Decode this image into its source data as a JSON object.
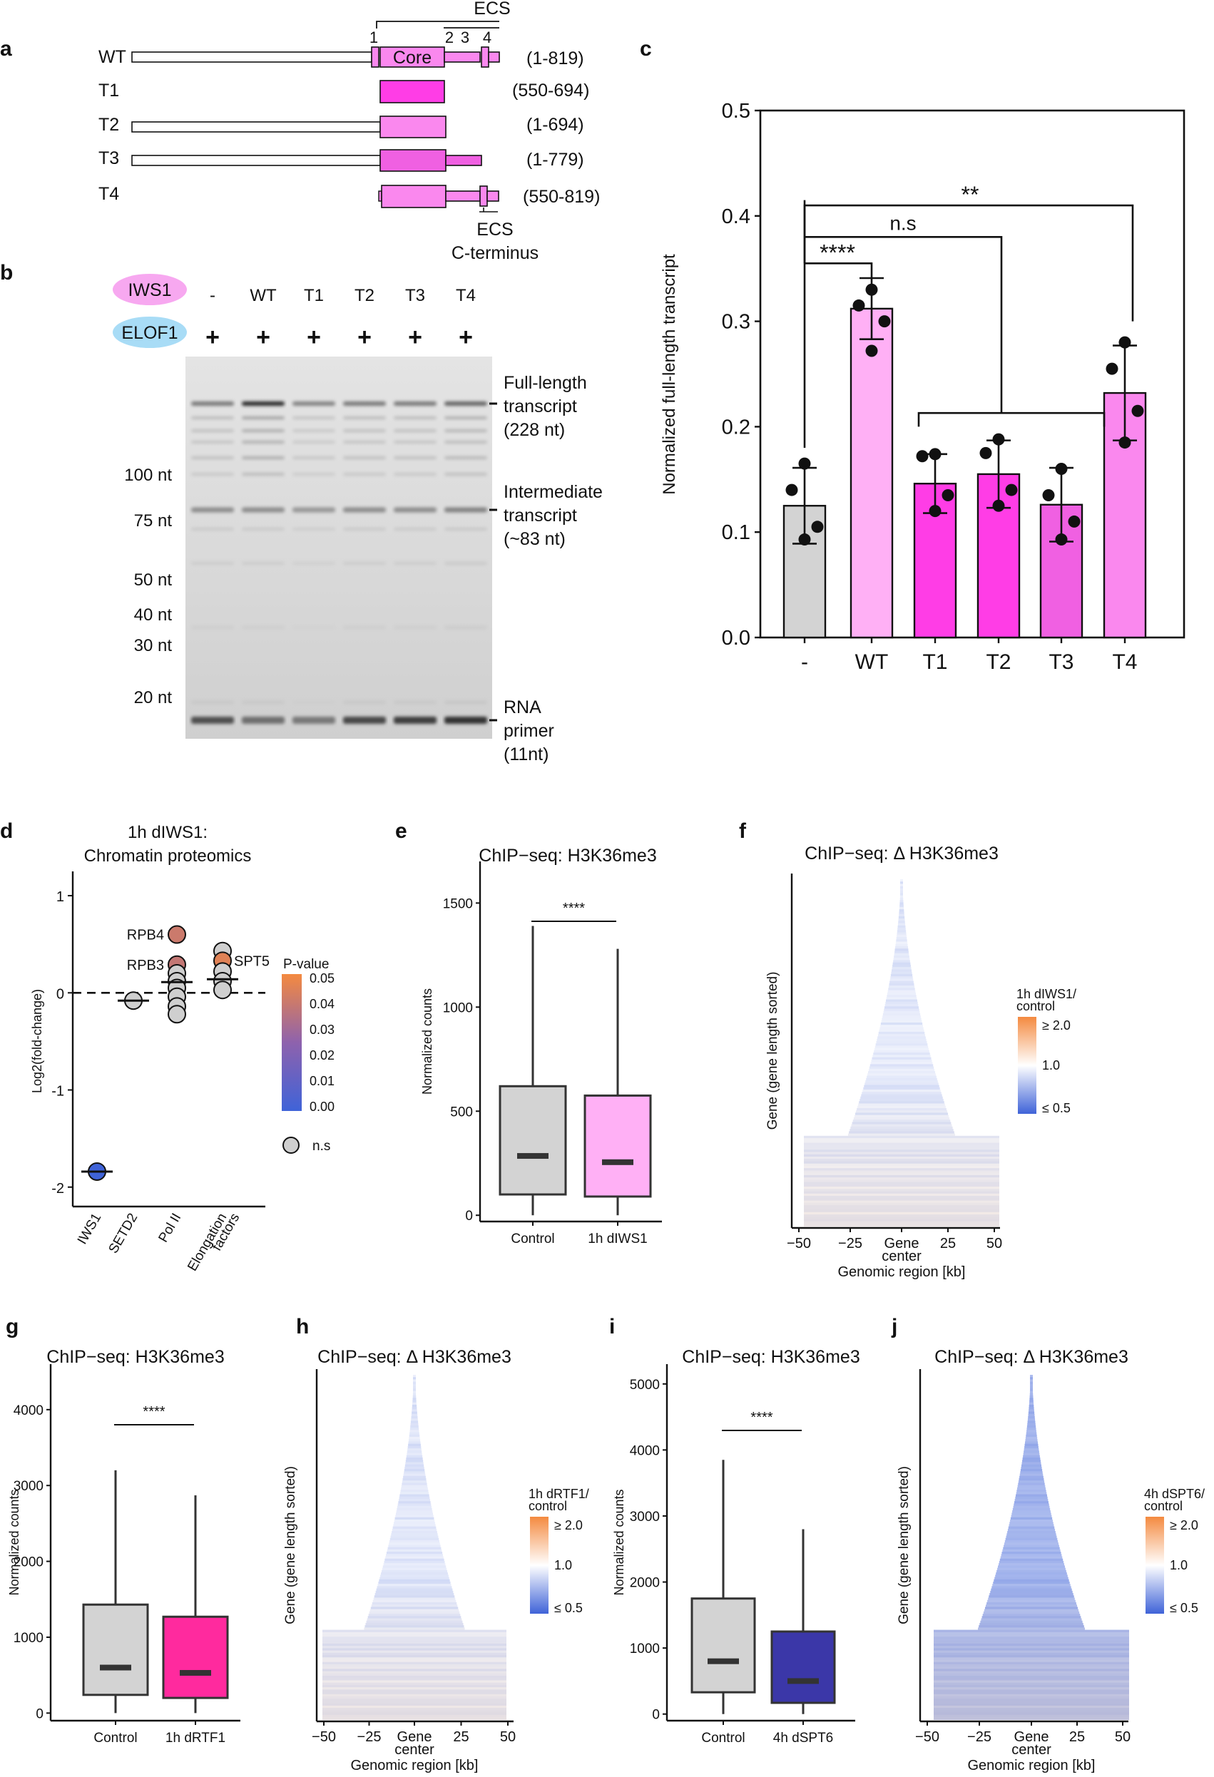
{
  "colors": {
    "grey_box": "#d3d3d3",
    "wt_pink": "#ffb0f5",
    "trunc_pink": "#ff3de6",
    "t3_pink": "#f060e2",
    "t4_pink": "#fa88ee",
    "rtf1_pink": "#ff2a9e",
    "spt6_blue": "#3b37a8",
    "iws1_oval": "#f7a8f0",
    "elof1_oval": "#a8dcf6",
    "heat_low": "#3f63d8",
    "heat_mid": "#ffffff",
    "heat_high": "#f48a40"
  },
  "panel_labels": {
    "a": "a",
    "b": "b",
    "c": "c",
    "d": "d",
    "e": "e",
    "f": "f",
    "g": "g",
    "h": "h",
    "i": "i",
    "j": "j"
  },
  "panel_a": {
    "ecs_label": "ECS",
    "ecs_numbers": [
      "1",
      "2",
      "3",
      "4"
    ],
    "core_label": "Core",
    "ecs_bottom": "ECS",
    "cterm": "C-terminus",
    "constructs": [
      {
        "name": "WT",
        "range": "(1-819)"
      },
      {
        "name": "T1",
        "range": "(550-694)"
      },
      {
        "name": "T2",
        "range": "(1-694)"
      },
      {
        "name": "T3",
        "range": "(1-779)"
      },
      {
        "name": "T4",
        "range": "(550-819)"
      }
    ]
  },
  "panel_b": {
    "iws1": "IWS1",
    "elof1": "ELOF1",
    "lanes": [
      "-",
      "WT",
      "T1",
      "T2",
      "T3",
      "T4"
    ],
    "plus": "+",
    "markers": [
      "100 nt",
      "75 nt",
      "50 nt",
      "40 nt",
      "30 nt",
      "20 nt"
    ],
    "annot_full": [
      "Full-length",
      "transcript",
      "(228 nt)"
    ],
    "annot_inter": [
      "Intermediate",
      "transcript",
      "(~83 nt)"
    ],
    "annot_primer": [
      "RNA",
      "primer",
      "(11nt)"
    ]
  },
  "panel_c": {
    "chart_data": {
      "type": "bar",
      "ylabel": "Normalized full-length transcript",
      "categories": [
        "-",
        "WT",
        "T1",
        "T2",
        "T3",
        "T4"
      ],
      "values": [
        0.125,
        0.312,
        0.146,
        0.155,
        0.126,
        0.232
      ],
      "errors": [
        0.036,
        0.029,
        0.028,
        0.032,
        0.035,
        0.045
      ],
      "points": [
        [
          0.165,
          0.14,
          0.105,
          0.093
        ],
        [
          0.33,
          0.315,
          0.3,
          0.272
        ],
        [
          0.174,
          0.172,
          0.135,
          0.12
        ],
        [
          0.188,
          0.175,
          0.14,
          0.125
        ],
        [
          0.16,
          0.135,
          0.11,
          0.093
        ],
        [
          0.28,
          0.255,
          0.215,
          0.185
        ]
      ],
      "ylim": [
        0,
        0.5
      ],
      "yticks": [
        "0.0",
        "0.1",
        "0.2",
        "0.3",
        "0.4",
        "0.5"
      ],
      "sig": [
        "****",
        "n.s",
        "**"
      ]
    }
  },
  "panel_d": {
    "title": [
      "1h dIWS1:",
      "Chromatin proteomics"
    ],
    "chart_data": {
      "type": "scatter",
      "ylabel": "Log2(fold-change)",
      "categories": [
        "IWS1",
        "SETD2",
        "Pol II",
        "Elongation factors"
      ],
      "category_lines": [
        [
          "IWS1"
        ],
        [
          "SETD2"
        ],
        [
          "Pol II"
        ],
        [
          "Elongation",
          "factors"
        ]
      ],
      "ylim": [
        -2.2,
        1.25
      ],
      "yticks": [
        "-2",
        "-1",
        "0",
        "1"
      ],
      "ytick_values": [
        -2,
        -1,
        0,
        1
      ],
      "points": [
        {
          "cat": 0,
          "y": -1.84,
          "sig": true,
          "p": 0.0
        },
        {
          "cat": 1,
          "y": -0.08,
          "sig": false
        },
        {
          "cat": 2,
          "y": 0.6,
          "sig": true,
          "p": 0.04
        },
        {
          "cat": 2,
          "y": 0.29,
          "sig": true,
          "p": 0.038
        },
        {
          "cat": 2,
          "y": 0.2,
          "sig": false
        },
        {
          "cat": 2,
          "y": 0.12,
          "sig": false
        },
        {
          "cat": 2,
          "y": 0.05,
          "sig": false
        },
        {
          "cat": 2,
          "y": -0.04,
          "sig": false
        },
        {
          "cat": 2,
          "y": -0.14,
          "sig": false
        },
        {
          "cat": 2,
          "y": -0.22,
          "sig": false
        },
        {
          "cat": 3,
          "y": 0.43,
          "sig": false
        },
        {
          "cat": 3,
          "y": 0.33,
          "sig": true,
          "p": 0.045
        },
        {
          "cat": 3,
          "y": 0.22,
          "sig": false
        },
        {
          "cat": 3,
          "y": 0.12,
          "sig": false
        },
        {
          "cat": 3,
          "y": 0.03,
          "sig": false
        }
      ],
      "medians": [
        -1.84,
        -0.08,
        0.11,
        0.14
      ],
      "labels": [
        {
          "text": "RPB4",
          "y": 0.6
        },
        {
          "text": "RPB3",
          "y": 0.29
        },
        {
          "text": "SPT5",
          "y": 0.33
        }
      ],
      "legend_title": "P-value",
      "legend_ticks": [
        "0.05",
        "0.04",
        "0.03",
        "0.02",
        "0.01",
        "0.00"
      ],
      "legend_ns": "n.s"
    }
  },
  "boxplots": {
    "e": {
      "title": "ChIP−seq: H3K36me3",
      "ylabel": "Normalized counts",
      "ylim": [
        -30,
        1700
      ],
      "yticks": [
        0,
        500,
        1000,
        1500
      ],
      "categories": [
        "Control",
        "1h dIWS1"
      ],
      "boxes": [
        {
          "min": 0,
          "q1": 100,
          "median": 285,
          "q3": 620,
          "max": 1390,
          "color_key": "grey_box"
        },
        {
          "min": 0,
          "q1": 90,
          "median": 255,
          "q3": 575,
          "max": 1280,
          "color_key": "wt_pink"
        }
      ],
      "sig": "****"
    },
    "g": {
      "title": "ChIP−seq: H3K36me3",
      "ylabel": "Normalized counts",
      "ylim": [
        -100,
        4600
      ],
      "yticks": [
        0,
        1000,
        2000,
        3000,
        4000
      ],
      "categories": [
        "Control",
        "1h dRTF1"
      ],
      "boxes": [
        {
          "min": 0,
          "q1": 240,
          "median": 600,
          "q3": 1430,
          "max": 3200,
          "color_key": "grey_box"
        },
        {
          "min": 0,
          "q1": 200,
          "median": 530,
          "q3": 1270,
          "max": 2870,
          "color_key": "rtf1_pink"
        }
      ],
      "sig": "****"
    },
    "i": {
      "title": "ChIP−seq: H3K36me3",
      "ylabel": "Normalized counts",
      "ylim": [
        -100,
        5300
      ],
      "yticks": [
        0,
        1000,
        2000,
        3000,
        4000,
        5000
      ],
      "categories": [
        "Control",
        "4h dSPT6"
      ],
      "boxes": [
        {
          "min": 0,
          "q1": 330,
          "median": 800,
          "q3": 1750,
          "max": 3850,
          "color_key": "grey_box"
        },
        {
          "min": 0,
          "q1": 170,
          "median": 500,
          "q3": 1250,
          "max": 2800,
          "color_key": "spt6_blue"
        }
      ],
      "sig": "****"
    }
  },
  "heatmaps": {
    "f": {
      "title": "ChIP−seq: Δ H3K36me3",
      "ylabel": "Gene (gene length sorted)",
      "xticks": [
        "−50",
        "−25",
        "Gene",
        "25",
        "50"
      ],
      "xsub": "center",
      "xlabel": "Genomic region [kb]",
      "legend_title": [
        "1h dIWS1/",
        "control"
      ],
      "legend_ticks": [
        "≥ 2.0",
        "1.0",
        "≤ 0.5"
      ],
      "bias": 0.08
    },
    "h": {
      "title": "ChIP−seq: Δ H3K36me3",
      "ylabel": "Gene (gene length sorted)",
      "xticks": [
        "−50",
        "−25",
        "Gene",
        "25",
        "50"
      ],
      "xsub": "center",
      "xlabel": "Genomic region [kb]",
      "legend_title": [
        "1h dRTF1/",
        "control"
      ],
      "legend_ticks": [
        "≥ 2.0",
        "1.0",
        "≤ 0.5"
      ],
      "bias": 0.1
    },
    "j": {
      "title": "ChIP−seq: Δ H3K36me3",
      "ylabel": "Gene (gene length sorted)",
      "xticks": [
        "−50",
        "−25",
        "Gene",
        "25",
        "50"
      ],
      "xsub": "center",
      "xlabel": "Genomic region [kb]",
      "legend_title": [
        "4h dSPT6/",
        "control"
      ],
      "legend_ticks": [
        "≥ 2.0",
        "1.0",
        "≤ 0.5"
      ],
      "bias": 0.42
    }
  }
}
